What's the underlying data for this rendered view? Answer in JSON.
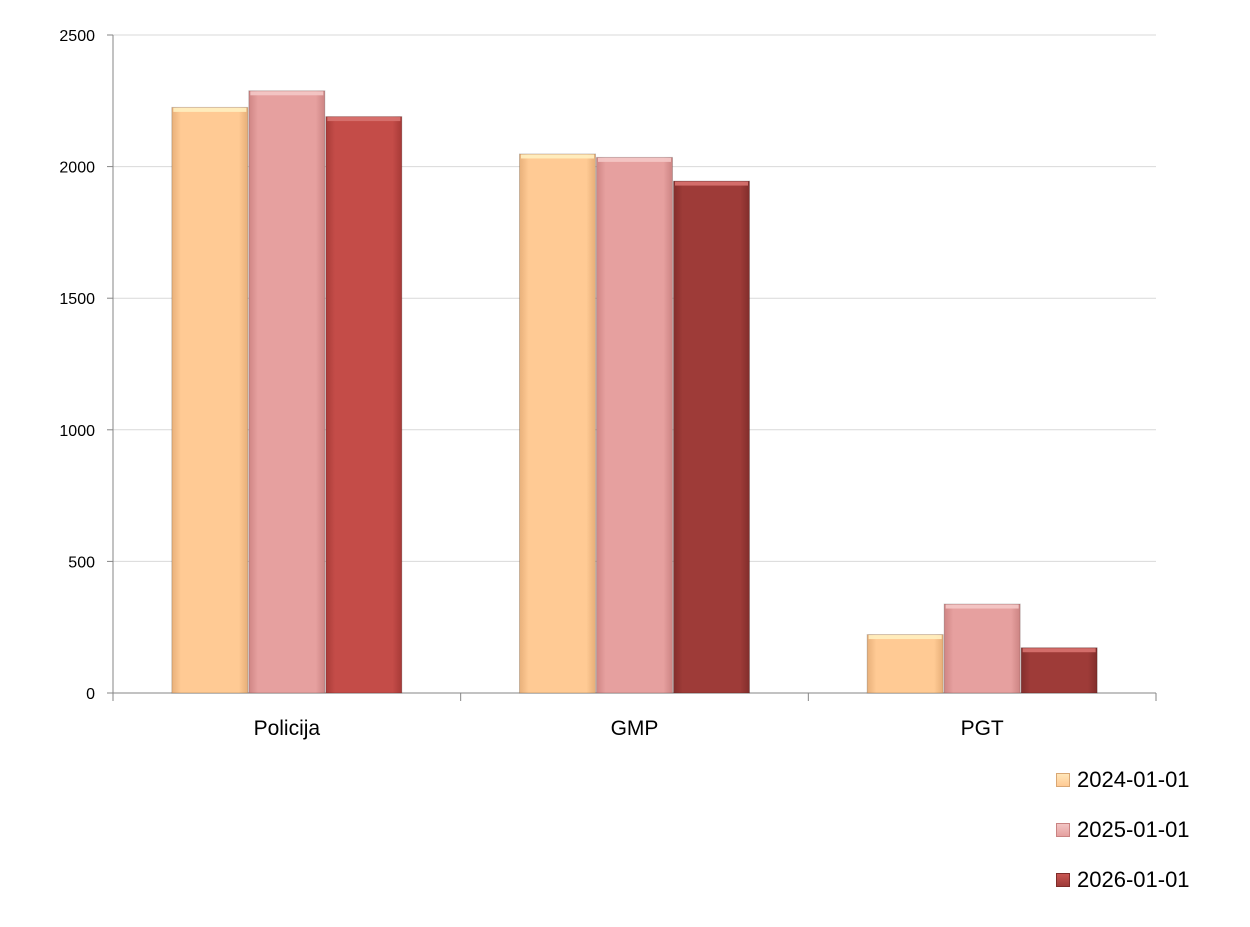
{
  "chart_data": {
    "type": "bar",
    "categories": [
      "Policija",
      "GMP",
      "PGT"
    ],
    "series": [
      {
        "name": "2024-01-01",
        "values": [
          2225,
          2048,
          222
        ],
        "color": "#FFCA94"
      },
      {
        "name": "2025-01-01",
        "values": [
          2288,
          2035,
          338
        ],
        "color": "#E6A09F"
      },
      {
        "name": "2026-01-01",
        "values": [
          2190,
          1945,
          172
        ],
        "color": "#C44C48",
        "color_alt": "#9E3B38"
      }
    ],
    "yticks": [
      "0",
      "500",
      "1000",
      "1500",
      "2000",
      "2500"
    ],
    "ylim": [
      0,
      2500
    ],
    "grid": true,
    "legend_position": "bottom-right"
  }
}
